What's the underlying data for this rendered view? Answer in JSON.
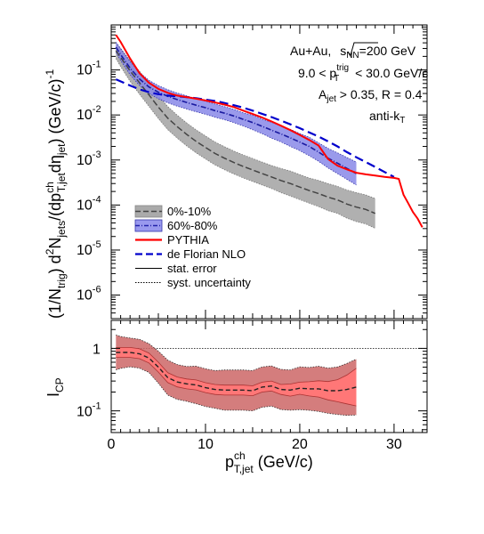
{
  "chart_data": [
    {
      "type": "line",
      "panel": "upper",
      "x_axis_scale": "linear",
      "y_axis_scale": "log",
      "xlim": [
        0,
        33.5
      ],
      "ylim": [
        3e-07,
        1
      ],
      "y_ticks": [
        {
          "value": 0.1,
          "mant": "10",
          "exp": "-1"
        },
        {
          "value": 0.01,
          "mant": "10",
          "exp": "-2"
        },
        {
          "value": 0.001,
          "mant": "10",
          "exp": "-3"
        },
        {
          "value": 0.0001,
          "mant": "10",
          "exp": "-4"
        },
        {
          "value": 1e-05,
          "mant": "10",
          "exp": "-5"
        },
        {
          "value": 1e-06,
          "mant": "10",
          "exp": "-6"
        }
      ],
      "ylabel": {
        "part1": "(1/N",
        "sub1": "trig",
        "part2": ") d",
        "sup2": "2",
        "part3": "N",
        "sub3": "jets",
        "part4": "/(dp",
        "sup4": "ch",
        "sub4": "T,jet",
        "part5": "d",
        "greek5": "η",
        "sub5": "jet",
        "part6": ")  (GeV/c)",
        "sup6": "-1"
      },
      "annotations": {
        "system": "Au+Au, ",
        "sqrt_s": "s",
        "sqrt_s_sub": "NN",
        "energy": "=200 GeV",
        "trig_range_left": "9.0 < p",
        "trig_range_sup": "trig",
        "trig_range_sub": "T",
        "trig_range_right": " < 30.0 GeV/c",
        "ajet_left": "A",
        "ajet_sub": "jet",
        "ajet_right": " > 0.35, R = 0.4",
        "algo": "anti-k",
        "algo_sub": "T"
      },
      "legend": {
        "position": "center-left",
        "entries": [
          {
            "label": "0%-10%",
            "style": "gray-band-dashed"
          },
          {
            "label": "60%-80%",
            "style": "blue-band-dashdot"
          },
          {
            "label": "PYTHIA",
            "style": "red-line"
          },
          {
            "label": "de Florian NLO",
            "style": "blue-dashed"
          },
          {
            "label": "stat. error",
            "style": "thin-line"
          },
          {
            "label": "syst. uncertainty",
            "style": "dotted-line"
          }
        ]
      },
      "series": [
        {
          "name": "0%-10%",
          "color": "#999999",
          "x": [
            0.5,
            1,
            2,
            3,
            4,
            5,
            6,
            7,
            8,
            9,
            10,
            11,
            12,
            13,
            14,
            15,
            16,
            17,
            18,
            19,
            20,
            21,
            22,
            23,
            24,
            25,
            26,
            27,
            28
          ],
          "y": [
            0.27,
            0.19,
            0.095,
            0.052,
            0.028,
            0.015,
            0.0085,
            0.0055,
            0.0037,
            0.0026,
            0.0019,
            0.0014,
            0.0011,
            0.00088,
            0.00072,
            0.0006,
            0.0005,
            0.00042,
            0.00035,
            0.0003,
            0.00025,
            0.00021,
            0.00018,
            0.00015,
            0.00013,
            0.000105,
            9e-05,
            8e-05,
            6.5e-05
          ],
          "sys_factor": [
            1.5,
            1.6,
            1.7,
            1.8,
            1.8,
            1.8,
            1.8,
            1.8,
            1.8,
            1.8,
            1.8,
            1.8,
            1.8,
            1.8,
            1.8,
            1.8,
            1.8,
            1.8,
            1.85,
            1.9,
            1.9,
            1.9,
            1.95,
            2.0,
            2.0,
            2.05,
            2.1,
            2.1,
            2.15
          ]
        },
        {
          "name": "60%-80%",
          "color": "#6666dd",
          "x": [
            0.5,
            1,
            2,
            3,
            4,
            5,
            6,
            7,
            8,
            9,
            10,
            11,
            12,
            13,
            14,
            15,
            16,
            17,
            18,
            19,
            20,
            21,
            22,
            23,
            24,
            25,
            26
          ],
          "y": [
            0.32,
            0.22,
            0.11,
            0.063,
            0.042,
            0.032,
            0.026,
            0.022,
            0.019,
            0.0165,
            0.0145,
            0.0125,
            0.011,
            0.0095,
            0.008,
            0.0068,
            0.0056,
            0.0046,
            0.0038,
            0.0031,
            0.0025,
            0.002,
            0.0015,
            0.0011,
            0.00085,
            0.00065,
            0.0005
          ],
          "sys_factor": [
            1.3,
            1.35,
            1.4,
            1.4,
            1.4,
            1.4,
            1.4,
            1.4,
            1.4,
            1.4,
            1.4,
            1.4,
            1.4,
            1.4,
            1.4,
            1.45,
            1.45,
            1.5,
            1.5,
            1.55,
            1.55,
            1.6,
            1.6,
            1.65,
            1.7,
            1.75,
            1.8
          ]
        },
        {
          "name": "PYTHIA",
          "color": "#ff0000",
          "x": [
            0.5,
            1,
            2,
            3,
            4,
            5,
            6,
            7,
            8,
            9,
            10,
            11,
            12,
            13,
            14,
            15,
            16,
            17,
            18,
            19,
            20,
            21,
            22,
            23,
            24,
            25,
            26,
            27,
            28,
            29,
            30,
            30.5,
            31,
            31.5,
            32,
            32.5,
            33
          ],
          "y": [
            0.6,
            0.42,
            0.18,
            0.085,
            0.052,
            0.038,
            0.031,
            0.027,
            0.025,
            0.023,
            0.021,
            0.019,
            0.017,
            0.015,
            0.0125,
            0.0105,
            0.0088,
            0.0072,
            0.0058,
            0.0046,
            0.0036,
            0.0028,
            0.0021,
            0.00105,
            0.00075,
            0.00062,
            0.00052,
            0.00048,
            0.00045,
            0.00042,
            0.0004,
            0.00038,
            0.00017,
            0.00011,
            7e-05,
            5e-05,
            3.2e-05
          ]
        },
        {
          "name": "de Florian NLO",
          "color": "#0000cc",
          "x": [
            0.5,
            2,
            3,
            4,
            5,
            6,
            7,
            8,
            9,
            10,
            11,
            12,
            13,
            14,
            15,
            16,
            17,
            18,
            19,
            20,
            21,
            22,
            23,
            24,
            25,
            26,
            27,
            28,
            29,
            30
          ],
          "y": [
            0.062,
            0.045,
            0.037,
            0.032,
            0.029,
            0.027,
            0.026,
            0.025,
            0.0235,
            0.022,
            0.0205,
            0.0185,
            0.0165,
            0.0145,
            0.0125,
            0.0106,
            0.009,
            0.0075,
            0.0062,
            0.0051,
            0.0041,
            0.0033,
            0.0026,
            0.002,
            0.0015,
            0.00115,
            0.0009,
            0.0007,
            0.00054,
            0.00042
          ]
        }
      ]
    },
    {
      "type": "line",
      "panel": "lower",
      "x_axis_scale": "linear",
      "y_axis_scale": "log",
      "xlim": [
        0,
        33.5
      ],
      "ylim": [
        0.045,
        2.8
      ],
      "x_ticks": [
        0,
        10,
        20,
        30
      ],
      "y_ticks": [
        {
          "value": 1,
          "label": "1"
        },
        {
          "value": 0.1,
          "mant": "10",
          "exp": "-1"
        }
      ],
      "reference_line": 1,
      "ylabel": {
        "main": "I",
        "sub": "CP"
      },
      "xlabel": {
        "main": "p",
        "sup": "ch",
        "sub": "T,jet",
        "unit": " (GeV/c)"
      },
      "series": [
        {
          "name": "I_CP",
          "color": "#ff5555",
          "x": [
            0.5,
            1,
            2,
            3,
            4,
            5,
            6,
            7,
            8,
            9,
            10,
            11,
            12,
            13,
            14,
            15,
            16,
            17,
            18,
            19,
            20,
            21,
            22,
            23,
            24,
            25,
            26
          ],
          "y": [
            0.86,
            0.86,
            0.86,
            0.82,
            0.7,
            0.5,
            0.34,
            0.29,
            0.27,
            0.26,
            0.235,
            0.22,
            0.215,
            0.215,
            0.215,
            0.21,
            0.24,
            0.25,
            0.22,
            0.215,
            0.23,
            0.225,
            0.225,
            0.21,
            0.21,
            0.22,
            0.24
          ],
          "stat_factor": [
            1.2,
            1.2,
            1.2,
            1.2,
            1.2,
            1.2,
            1.2,
            1.2,
            1.2,
            1.2,
            1.2,
            1.2,
            1.2,
            1.2,
            1.2,
            1.2,
            1.2,
            1.2,
            1.2,
            1.25,
            1.25,
            1.3,
            1.35,
            1.4,
            1.5,
            1.7,
            2.0
          ],
          "sys_factor": [
            1.9,
            1.8,
            1.7,
            1.7,
            1.7,
            1.8,
            1.9,
            1.9,
            1.9,
            2.0,
            2.0,
            2.0,
            2.1,
            2.1,
            2.1,
            2.1,
            2.1,
            2.1,
            2.1,
            2.1,
            2.2,
            2.2,
            2.3,
            2.3,
            2.4,
            2.6,
            2.8
          ]
        }
      ]
    }
  ]
}
